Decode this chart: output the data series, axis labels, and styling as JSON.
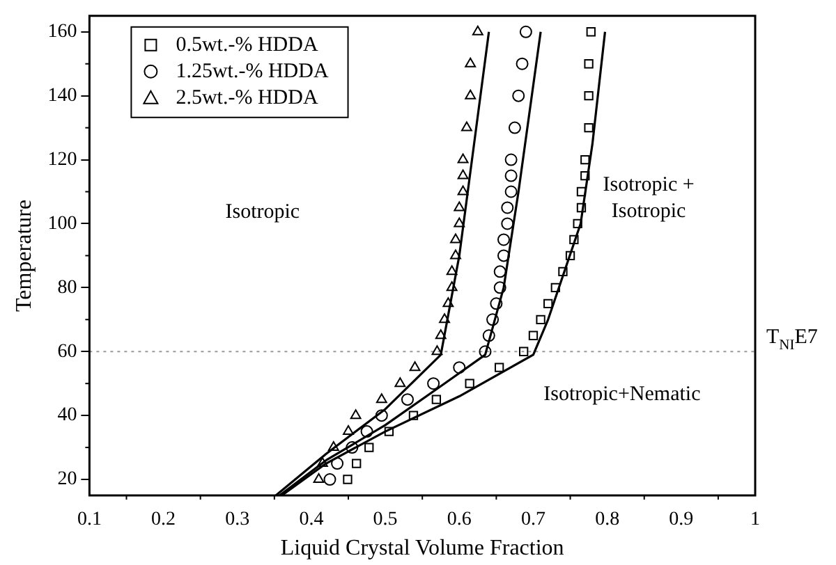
{
  "chart_data": {
    "type": "scatter",
    "xlabel": "Liquid Crystal Volume Fraction",
    "ylabel": "Temperature",
    "xlim": [
      0.1,
      1.0
    ],
    "xticks": [
      0.1,
      0.2,
      0.3,
      0.4,
      0.5,
      0.6,
      0.7,
      0.8,
      0.9,
      1.0
    ],
    "ylim": [
      15,
      165
    ],
    "yticks": [
      20,
      40,
      60,
      80,
      100,
      120,
      140,
      160
    ],
    "grid": false,
    "legend": "top left",
    "series": [
      {
        "name": "0.5wt.-% HDDA",
        "color": "#000000",
        "marker": "square",
        "x": [
          0.449,
          0.461,
          0.478,
          0.505,
          0.538,
          0.569,
          0.614,
          0.654,
          0.687,
          0.7,
          0.71,
          0.72,
          0.73,
          0.74,
          0.75,
          0.755,
          0.76,
          0.765,
          0.765,
          0.77,
          0.77,
          0.775,
          0.775,
          0.775,
          0.778
        ],
        "values": [
          20,
          25,
          30,
          35,
          40,
          45,
          50,
          55,
          60,
          65,
          70,
          75,
          80,
          85,
          90,
          95,
          100,
          105,
          110,
          115,
          120,
          130,
          140,
          150,
          160
        ]
      },
      {
        "name": "1.25wt.-% HDDA",
        "color": "#000000",
        "marker": "circle",
        "x": [
          0.425,
          0.435,
          0.455,
          0.475,
          0.495,
          0.53,
          0.565,
          0.6,
          0.635,
          0.64,
          0.645,
          0.65,
          0.655,
          0.655,
          0.66,
          0.66,
          0.665,
          0.665,
          0.67,
          0.67,
          0.67,
          0.675,
          0.68,
          0.685,
          0.69
        ],
        "values": [
          20,
          25,
          30,
          35,
          40,
          45,
          50,
          55,
          60,
          65,
          70,
          75,
          80,
          85,
          90,
          95,
          100,
          105,
          110,
          115,
          120,
          130,
          140,
          150,
          160
        ]
      },
      {
        "name": "2.5wt.-% HDDA",
        "color": "#000000",
        "marker": "triangle",
        "x": [
          0.41,
          0.415,
          0.43,
          0.45,
          0.46,
          0.495,
          0.52,
          0.54,
          0.57,
          0.575,
          0.58,
          0.585,
          0.59,
          0.59,
          0.595,
          0.595,
          0.6,
          0.6,
          0.605,
          0.605,
          0.605,
          0.61,
          0.615,
          0.615,
          0.625
        ],
        "values": [
          20,
          25,
          30,
          35,
          40,
          45,
          50,
          55,
          60,
          65,
          70,
          75,
          80,
          85,
          90,
          95,
          100,
          105,
          110,
          115,
          120,
          130,
          140,
          150,
          160
        ]
      },
      {
        "type": "line",
        "color": "#000000",
        "marker": "none",
        "x": [
          0.36,
          0.42,
          0.5,
          0.6,
          0.7,
          0.72,
          0.764,
          0.78,
          0.797
        ],
        "values": [
          15,
          25,
          35,
          46,
          59,
          70,
          100,
          125,
          160
        ]
      },
      {
        "type": "line",
        "color": "#000000",
        "marker": "none",
        "x": [
          0.357,
          0.42,
          0.5,
          0.58,
          0.635,
          0.66,
          0.68,
          0.71
        ],
        "values": [
          15,
          26,
          37,
          50,
          59,
          80,
          110,
          160
        ]
      },
      {
        "type": "line",
        "color": "#000000",
        "marker": "none",
        "x": [
          0.352,
          0.42,
          0.5,
          0.575,
          0.6,
          0.62,
          0.64
        ],
        "values": [
          15,
          28,
          42,
          59,
          90,
          125,
          160
        ]
      }
    ],
    "ref_lines": [
      {
        "axis": "y",
        "value": 60,
        "label": "T$_{NI}$E7",
        "color": "#999999",
        "line_style": "dotted"
      }
    ],
    "annotations": [
      "Isotropic",
      "Isotropic +\nIsotropic",
      "Isotropic+Nematic"
    ]
  }
}
